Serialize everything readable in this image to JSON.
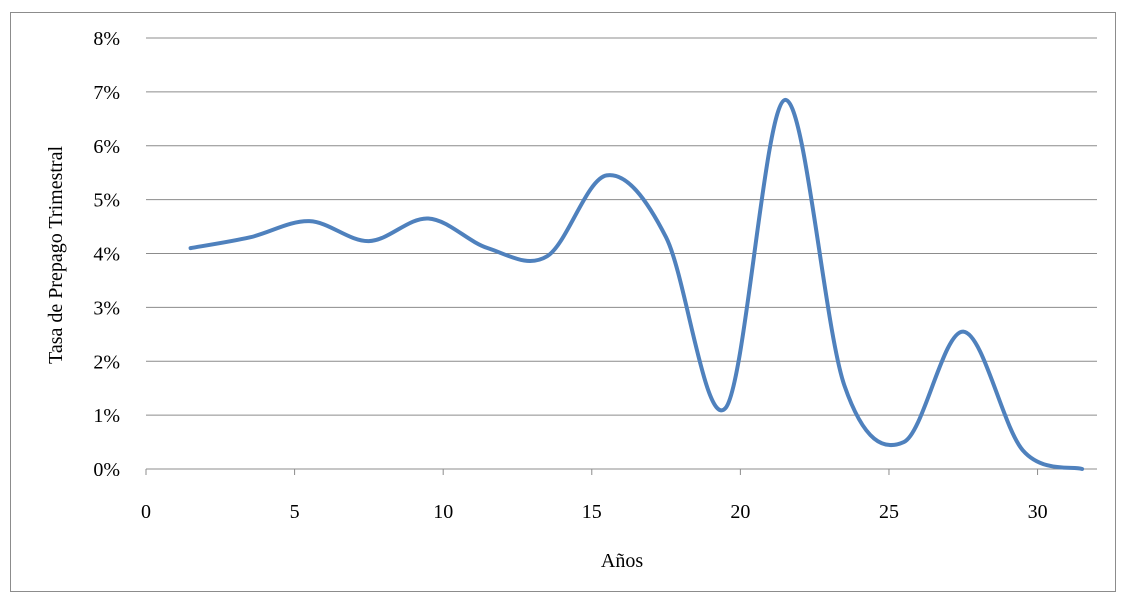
{
  "chart_data": {
    "type": "line",
    "title": "",
    "xlabel": "Años",
    "ylabel": "Tasa de Prepago Trimestral",
    "xlim": [
      0,
      32
    ],
    "ylim": [
      0,
      0.08
    ],
    "x_ticks": [
      0,
      5,
      10,
      15,
      20,
      25,
      30
    ],
    "x_tick_labels": [
      "0",
      "5",
      "10",
      "15",
      "20",
      "25",
      "30"
    ],
    "y_ticks": [
      0,
      0.01,
      0.02,
      0.03,
      0.04,
      0.05,
      0.06,
      0.07,
      0.08
    ],
    "y_tick_labels": [
      "0%",
      "1%",
      "2%",
      "3%",
      "4%",
      "5%",
      "6%",
      "7%",
      "8%"
    ],
    "grid": "horizontal",
    "legend": "none",
    "series": [
      {
        "color": "#4f81bd",
        "smooth": true,
        "x": [
          1.5,
          3.5,
          5.5,
          7.5,
          9.5,
          11.5,
          13.5,
          15.5,
          17.5,
          19.5,
          21.5,
          23.5,
          25.5,
          27.5,
          29.5,
          31.5
        ],
        "y": [
          0.041,
          0.043,
          0.046,
          0.0423,
          0.0465,
          0.041,
          0.0395,
          0.0545,
          0.043,
          0.0113,
          0.0685,
          0.0155,
          0.005,
          0.0255,
          0.0035,
          0.0
        ]
      }
    ]
  }
}
